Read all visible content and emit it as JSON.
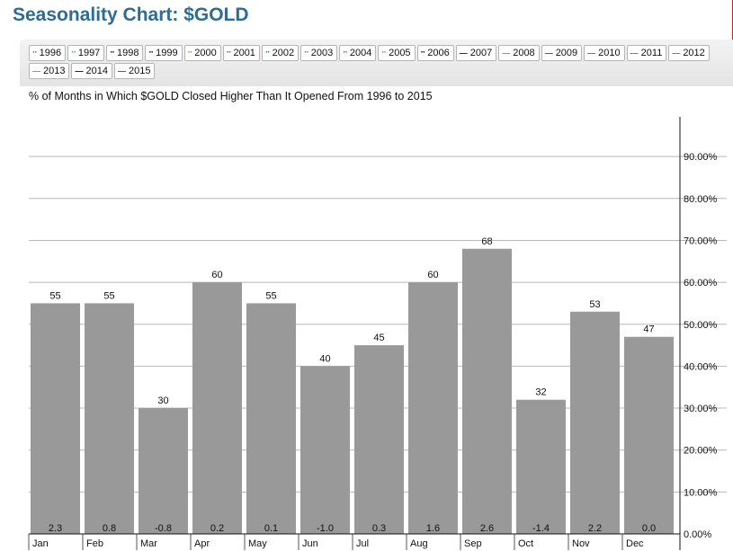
{
  "page": {
    "title": "Seasonality Chart: $GOLD"
  },
  "legend": [
    {
      "label": "1996",
      "color": "#cc33cc",
      "style": "dotted"
    },
    {
      "label": "1997",
      "color": "#33cc33",
      "style": "dotted"
    },
    {
      "label": "1998",
      "color": "#111111",
      "style": "dotted"
    },
    {
      "label": "1999",
      "color": "#111111",
      "style": "dotted"
    },
    {
      "label": "2000",
      "color": "#e07a1f",
      "style": "dotted"
    },
    {
      "label": "2001",
      "color": "#9933cc",
      "style": "dotted"
    },
    {
      "label": "2002",
      "color": "#228899",
      "style": "dotted"
    },
    {
      "label": "2003",
      "color": "#777777",
      "style": "dotted"
    },
    {
      "label": "2004",
      "color": "#cc33cc",
      "style": "dotted"
    },
    {
      "label": "2005",
      "color": "#33cc33",
      "style": "dotted"
    },
    {
      "label": "2006",
      "color": "#111111",
      "style": "dotted"
    },
    {
      "label": "2007",
      "color": "#660000",
      "style": "solid"
    },
    {
      "label": "2008",
      "color": "#e07a1f",
      "style": "solid"
    },
    {
      "label": "2009",
      "color": "#663399",
      "style": "solid"
    },
    {
      "label": "2010",
      "color": "#228899",
      "style": "solid"
    },
    {
      "label": "2011",
      "color": "#777777",
      "style": "solid"
    },
    {
      "label": "2012",
      "color": "#cc33cc",
      "style": "solid"
    },
    {
      "label": "2013",
      "color": "#33cc33",
      "style": "solid"
    },
    {
      "label": "2014",
      "color": "#111111",
      "style": "solid"
    },
    {
      "label": "2015",
      "color": "#cc2222",
      "style": "solid"
    }
  ],
  "chart_data": {
    "type": "bar",
    "title": "% of Months in Which $GOLD Closed Higher Than It Opened From 1996 to 2015",
    "categories": [
      "Jan",
      "Feb",
      "Mar",
      "Apr",
      "May",
      "Jun",
      "Jul",
      "Aug",
      "Sep",
      "Oct",
      "Nov",
      "Dec"
    ],
    "values": [
      55,
      55,
      30,
      60,
      55,
      40,
      45,
      60,
      68,
      32,
      53,
      47
    ],
    "average_change_labels": [
      "2.3",
      "0.8",
      "-0.8",
      "0.2",
      "0.1",
      "-1.0",
      "0.3",
      "1.6",
      "2.6",
      "-1.4",
      "2.2",
      "0.0"
    ],
    "ylim": [
      0,
      100
    ],
    "yticks": [
      0,
      10,
      20,
      30,
      40,
      50,
      60,
      70,
      80,
      90
    ],
    "ytick_labels": [
      "0.00%",
      "10.00%",
      "20.00%",
      "30.00%",
      "40.00%",
      "50.00%",
      "60.00%",
      "70.00%",
      "80.00%",
      "90.00%"
    ],
    "bar_color": "#999999",
    "grid": true,
    "y_axis_side": "right"
  }
}
